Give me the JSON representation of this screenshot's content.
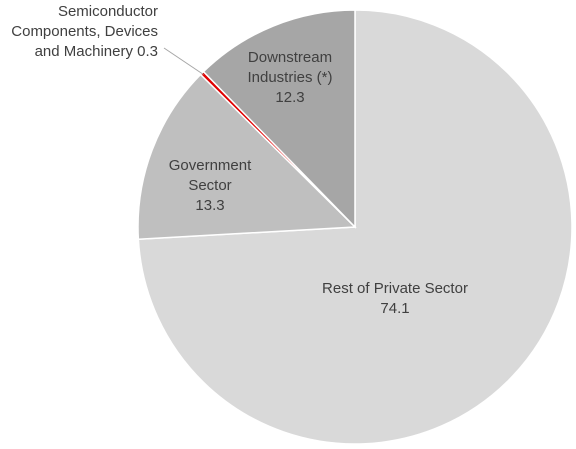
{
  "chart_data": {
    "type": "pie",
    "categories": [
      [
        "Rest of Private Sector"
      ],
      [
        "Government",
        "Sector"
      ],
      [
        "Semiconductor",
        "Components, Devices",
        "and Machinery"
      ],
      [
        "Downstream",
        "Industries (*)"
      ]
    ],
    "values": [
      74.1,
      13.3,
      0.3,
      12.3
    ],
    "colors": [
      "#d9d9d9",
      "#bfbfbf",
      "#e00000",
      "#a6a6a6"
    ]
  }
}
